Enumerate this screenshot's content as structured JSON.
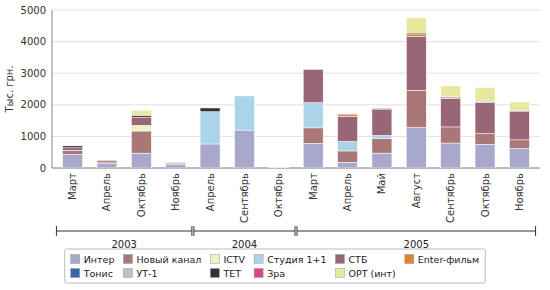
{
  "chart_data": {
    "type": "bar",
    "stacked": true,
    "categories": [
      "Март",
      "Апрель",
      "Октябрь",
      "Ноябрь",
      "Апрель",
      "Сентябрь",
      "Октябрь",
      "Март",
      "Апрель",
      "Май",
      "Август",
      "Сентябрь",
      "Октябрь",
      "Ноябрь"
    ],
    "category_groups": [
      {
        "label": "2003",
        "start": 0,
        "end": 3
      },
      {
        "label": "2004",
        "start": 4,
        "end": 6
      },
      {
        "label": "2005",
        "start": 7,
        "end": 13
      }
    ],
    "series": [
      {
        "name": "Интер",
        "color": "#a8a8cc",
        "values": [
          430,
          140,
          470,
          110,
          760,
          1200,
          10,
          780,
          180,
          470,
          1280,
          790,
          750,
          620
        ]
      },
      {
        "name": "Новый канал",
        "color": "#aa7777",
        "values": [
          130,
          50,
          700,
          30,
          0,
          0,
          0,
          490,
          360,
          460,
          1180,
          510,
          340,
          270
        ]
      },
      {
        "name": "ICTV",
        "color": "#f0f0c0",
        "values": [
          0,
          0,
          180,
          0,
          0,
          0,
          0,
          0,
          0,
          0,
          0,
          0,
          0,
          0
        ]
      },
      {
        "name": "Студия 1+1",
        "color": "#aad4e8",
        "values": [
          0,
          0,
          0,
          0,
          1020,
          1080,
          0,
          800,
          300,
          100,
          0,
          0,
          0,
          0
        ]
      },
      {
        "name": "СТБ",
        "color": "#996677",
        "values": [
          80,
          50,
          260,
          30,
          0,
          0,
          0,
          1050,
          800,
          820,
          1700,
          900,
          980,
          900
        ]
      },
      {
        "name": "Enter-фильм",
        "color": "#e08030",
        "values": [
          0,
          0,
          0,
          0,
          0,
          0,
          0,
          0,
          50,
          0,
          60,
          20,
          10,
          0
        ]
      },
      {
        "name": "Тонис",
        "color": "#3366aa",
        "values": [
          0,
          0,
          0,
          0,
          0,
          0,
          0,
          0,
          0,
          0,
          0,
          0,
          0,
          0
        ]
      },
      {
        "name": "УТ-1",
        "color": "#c0c0c0",
        "values": [
          0,
          0,
          0,
          0,
          0,
          0,
          0,
          0,
          0,
          0,
          0,
          0,
          0,
          0
        ]
      },
      {
        "name": "ТЕТ",
        "color": "#333333",
        "values": [
          60,
          0,
          60,
          0,
          120,
          0,
          0,
          0,
          20,
          30,
          50,
          30,
          30,
          30
        ]
      },
      {
        "name": "Зра",
        "color": "#dd4488",
        "values": [
          0,
          0,
          0,
          0,
          0,
          0,
          0,
          0,
          10,
          0,
          0,
          0,
          0,
          0
        ]
      },
      {
        "name": "ОРТ (инт)",
        "color": "#e8e8a0",
        "values": [
          0,
          0,
          160,
          0,
          0,
          0,
          0,
          0,
          0,
          0,
          480,
          350,
          440,
          270
        ]
      }
    ],
    "ylim": [
      0,
      5000
    ],
    "yticks": [
      0,
      1000,
      2000,
      3000,
      4000,
      5000
    ],
    "ylabel": "Тыс. грн.",
    "grid": true,
    "legend": "bottom"
  }
}
